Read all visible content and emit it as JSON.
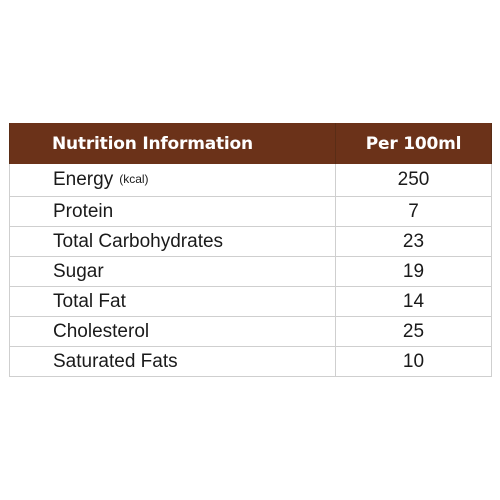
{
  "colors": {
    "header_bg": "#6b3219",
    "header_text": "#ffffff",
    "border": "#cfcfcf"
  },
  "table": {
    "header": {
      "col1": "Nutrition Information",
      "col2": "Per 100ml"
    },
    "rows": [
      {
        "label": "Energy",
        "unit": "(kcal)",
        "value": "250"
      },
      {
        "label": "Protein",
        "value": "7"
      },
      {
        "label": "Total Carbohydrates",
        "value": "23"
      },
      {
        "label": "Sugar",
        "value": "19"
      },
      {
        "label": "Total Fat",
        "value": "14"
      },
      {
        "label": "Cholesterol",
        "value": "25"
      },
      {
        "label": "Saturated Fats",
        "value": "10"
      }
    ]
  }
}
